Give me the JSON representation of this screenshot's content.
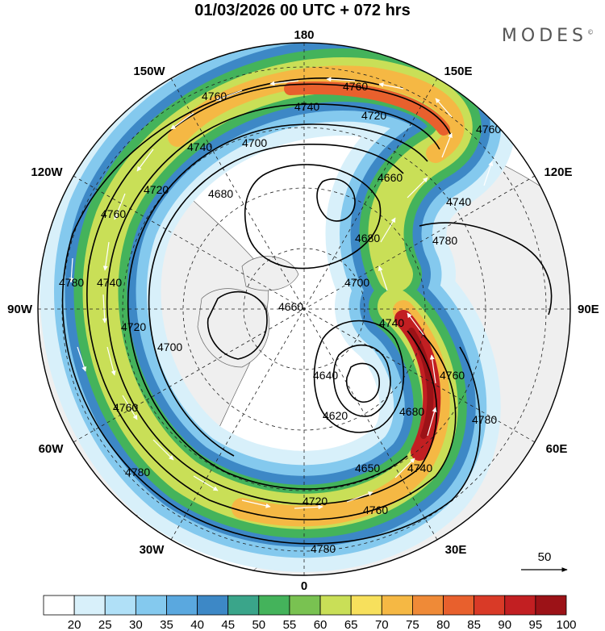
{
  "title": "01/03/2026  00 UTC  + 072 hrs",
  "brand": "MODES",
  "brand_mark": "©",
  "longitude_labels": {
    "top": "180",
    "bottom": "0",
    "left": "90W",
    "right": "90E",
    "upper_left_1": "150W",
    "upper_left_2": "120W",
    "upper_right_1": "150E",
    "upper_right_2": "120E",
    "lower_left_1": "60W",
    "lower_left_2": "30W",
    "lower_right_1": "60E",
    "lower_right_2": "30E"
  },
  "contour_labels": {
    "c4760a": "4760",
    "c4760b": "4760",
    "c4740a": "4740",
    "c4740b": "4740",
    "c4720a": "4720",
    "c4700a": "4700",
    "c4780a": "4780",
    "c4660a": "4660",
    "c4680a": "4680",
    "c4660b": "4660",
    "c4680b": "4680",
    "c4700b": "4700",
    "c4780b": "4780",
    "c4760c": "4760",
    "c4740c": "4740",
    "c4760d": "4760",
    "c4740d": "4740",
    "c4720b": "4720",
    "c4700c": "4700",
    "c4740e": "4740",
    "c4640a": "4640",
    "c4620a": "4620",
    "c4680c": "4680",
    "c4760e": "4760",
    "c4780c": "4780",
    "c4650a": "4650",
    "c4740f": "4740",
    "c4720c": "4720",
    "c4760f": "4760",
    "c4780d": "4780",
    "c4780e": "4780"
  },
  "vector_scale_label": "50",
  "colorbar": {
    "ticks": [
      "20",
      "25",
      "30",
      "35",
      "40",
      "45",
      "50",
      "55",
      "60",
      "65",
      "70",
      "75",
      "80",
      "85",
      "90",
      "95",
      "100"
    ],
    "colors": [
      "#ffffff",
      "#d8f0fa",
      "#b0e0f7",
      "#84c9ee",
      "#5aa8df",
      "#3d88c6",
      "#3aa58a",
      "#44b35b",
      "#79c251",
      "#c9df57",
      "#f7e05c",
      "#f5b844",
      "#ef8a37",
      "#e8602d",
      "#d93a27",
      "#c21f22",
      "#9c1217"
    ]
  },
  "colors": {
    "land": "#efefef",
    "land_edge": "#555555",
    "ocean": "#ffffff"
  }
}
